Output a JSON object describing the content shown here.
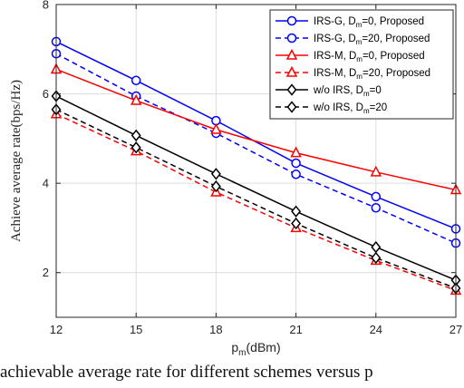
{
  "chart_data": {
    "type": "line",
    "xlabel": "p_m(dBm)",
    "ylabel": "Achieve average rate(bps/Hz)",
    "x": [
      12,
      15,
      18,
      21,
      24,
      27
    ],
    "xlim": [
      12,
      27
    ],
    "ylim": [
      1,
      8
    ],
    "yticks": [
      2,
      4,
      6,
      8
    ],
    "grid": true,
    "legend_position": "top-right",
    "series": [
      {
        "name": "IRS-G, D_m=0, Proposed",
        "legend_main": "IRS-G, D",
        "legend_sub": "m",
        "legend_rest": "=0, Proposed",
        "color": "#0000ff",
        "dash": "solid",
        "marker": "circle",
        "values": [
          7.17,
          6.3,
          5.4,
          4.45,
          3.7,
          2.98
        ]
      },
      {
        "name": "IRS-G, D_m=20, Proposed",
        "legend_main": "IRS-G, D",
        "legend_sub": "m",
        "legend_rest": "=20, Proposed",
        "color": "#0000ff",
        "dash": "dashed",
        "marker": "circle",
        "values": [
          6.9,
          5.95,
          5.12,
          4.2,
          3.45,
          2.66
        ]
      },
      {
        "name": "IRS-M, D_m=0, Proposed",
        "legend_main": "IRS-M, D",
        "legend_sub": "m",
        "legend_rest": "=0, Proposed",
        "color": "#ff0000",
        "dash": "solid",
        "marker": "triangle",
        "values": [
          6.55,
          5.85,
          5.2,
          4.68,
          4.25,
          3.85
        ]
      },
      {
        "name": "IRS-M, D_m=20, Proposed",
        "legend_main": "IRS-M, D",
        "legend_sub": "m",
        "legend_rest": "=20, Proposed",
        "color": "#ff0000",
        "dash": "dashed",
        "marker": "triangle",
        "values": [
          5.55,
          4.72,
          3.8,
          3.0,
          2.27,
          1.6
        ]
      },
      {
        "name": "w/o IRS, D_m=0",
        "legend_main": "w/o IRS, D",
        "legend_sub": "m",
        "legend_rest": "=0",
        "color": "#000000",
        "dash": "solid",
        "marker": "diamond",
        "values": [
          5.95,
          5.07,
          4.21,
          3.37,
          2.57,
          1.83
        ]
      },
      {
        "name": "w/o IRS, D_m=20",
        "legend_main": "w/o IRS, D",
        "legend_sub": "m",
        "legend_rest": "=20",
        "color": "#000000",
        "dash": "dashed",
        "marker": "diamond",
        "values": [
          5.65,
          4.8,
          3.93,
          3.1,
          2.33,
          1.65
        ]
      }
    ]
  },
  "caption": {
    "text": "achievable average rate for different schemes versus p"
  }
}
